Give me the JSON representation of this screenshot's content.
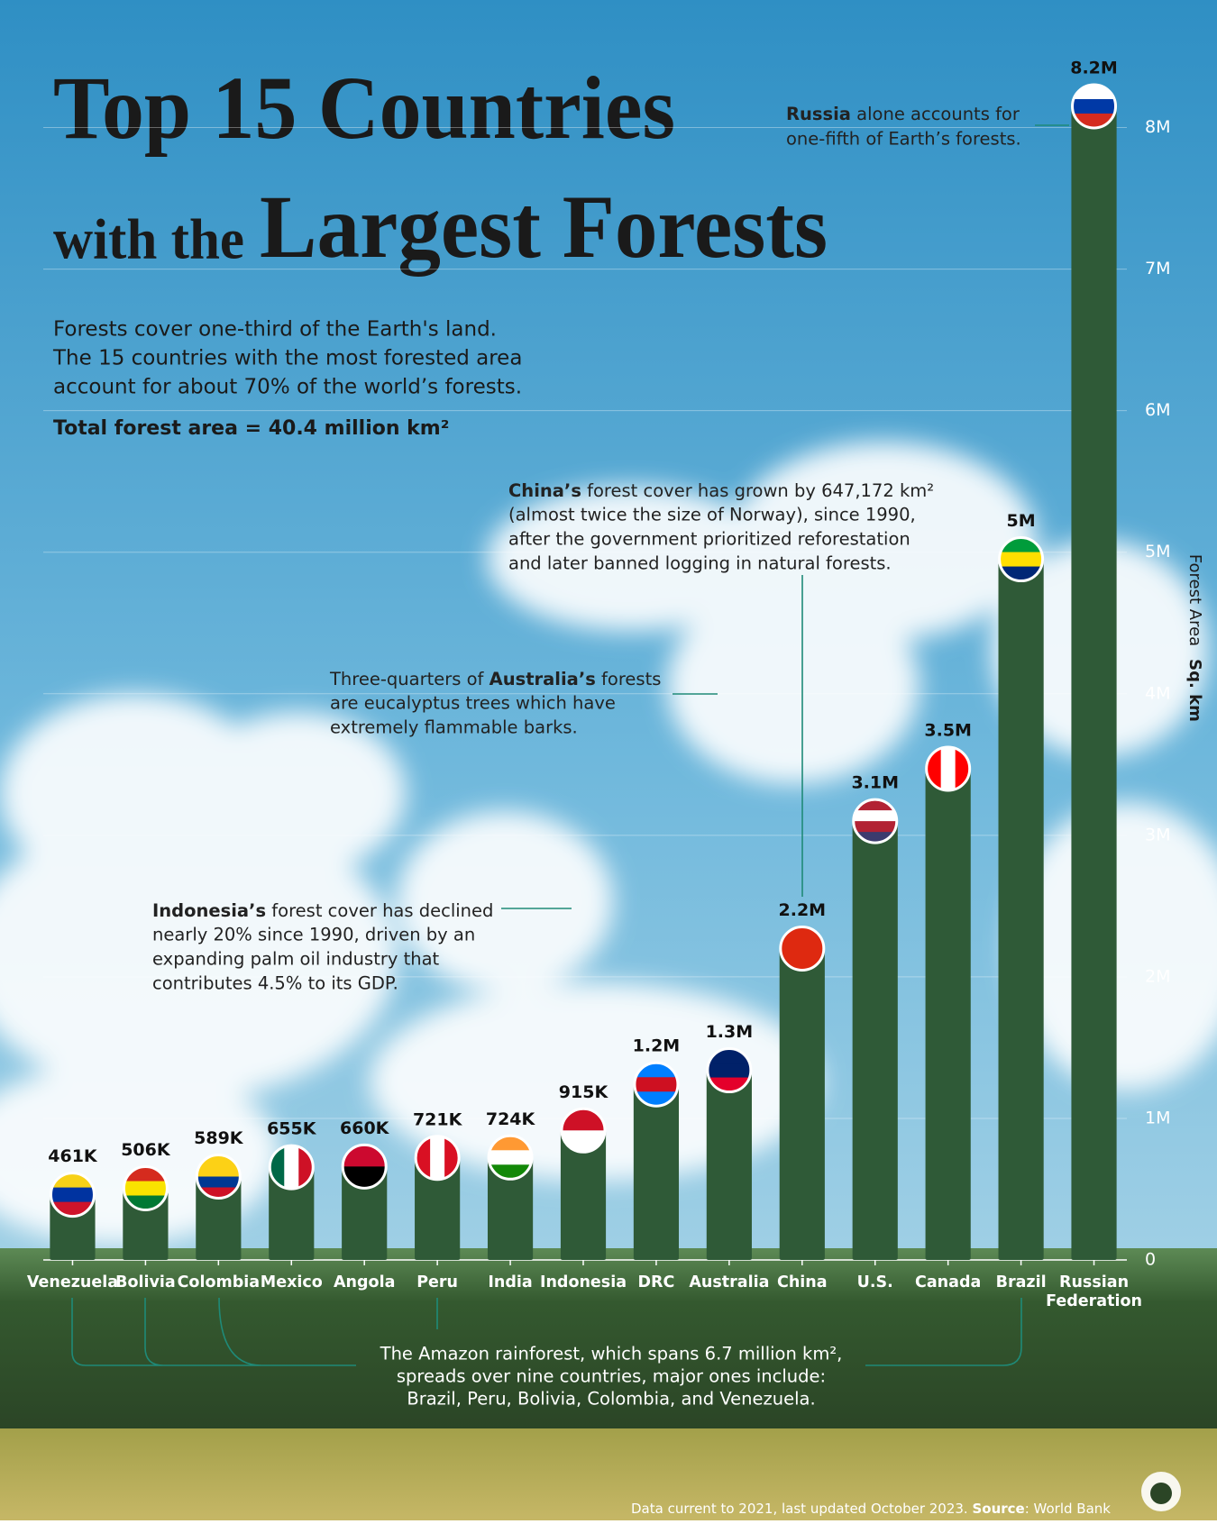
{
  "chart_data": {
    "type": "bar",
    "title": {
      "line1": "Top 15 Countries",
      "line2_small": "with the",
      "line2_large": "Largest Forests"
    },
    "subtitle": [
      "Forests cover one-third of the Earth's land.",
      "The 15 countries with the most forested area",
      "account for about 70% of the world’s forests."
    ],
    "total": "Total forest area = 40.4 million km²",
    "y_label": {
      "text": "Forest Area",
      "bold": "Sq. km"
    },
    "categories": [
      "Venezuela",
      "Bolivia",
      "Colombia",
      "Mexico",
      "Angola",
      "Peru",
      "India",
      "Indonesia",
      "DRC",
      "Australia",
      "China",
      "U.S.",
      "Canada",
      "Brazil",
      "Russian Federation"
    ],
    "values": [
      461000,
      506000,
      589000,
      655000,
      660000,
      721000,
      724000,
      915000,
      1240000,
      1340000,
      2200000,
      3100000,
      3470000,
      4950000,
      8150000
    ],
    "value_labels": [
      "461K",
      "506K",
      "589K",
      "655K",
      "660K",
      "721K",
      "724K",
      "915K",
      "1.2M",
      "1.3M",
      "2.2M",
      "3.1M",
      "3.5M",
      "5M",
      "8.2M"
    ],
    "color": "#2f5a37",
    "ylim": [
      0,
      8500000
    ],
    "yticks": [
      0,
      {
        "value": 1000000,
        "label": "1M"
      },
      {
        "value": 2000000,
        "label": "2M"
      },
      {
        "value": 3000000,
        "label": "3M"
      },
      {
        "value": 4000000,
        "label": "4M"
      },
      {
        "value": 5000000,
        "label": "5M"
      },
      {
        "value": 6000000,
        "label": "6M"
      },
      {
        "value": 7000000,
        "label": "7M"
      },
      {
        "value": 8000000,
        "label": "8M"
      }
    ],
    "grid": true,
    "annotations": [
      {
        "bold": "Russia",
        "lines": [
          " alone accounts for",
          "one-fifth of Earth’s forests."
        ]
      },
      {
        "bold": "China’s",
        "lines": [
          " forest cover has grown by 647,172 km²",
          "(almost twice the size of Norway), since 1990,",
          "after the government prioritized reforestation",
          "and later banned logging in natural forests."
        ]
      },
      {
        "bold": "",
        "lines": [
          "Three-quarters of ",
          "are eucalyptus trees which have",
          "extremely flammable barks."
        ],
        "bold_mid": "Australia’s",
        "after_bold": " forests"
      },
      {
        "bold": "Indonesia’s",
        "lines": [
          " forest cover has declined",
          "nearly 20% since 1990, driven by an",
          "expanding palm oil industry that",
          "contributes 4.5% to its GDP."
        ]
      },
      {
        "bold": "",
        "lines": [
          "The Amazon rainforest, which spans 6.7 million km²,",
          "spreads over nine countries, major ones include:",
          "Brazil, Peru, Bolivia, Colombia, and Venezuela."
        ]
      }
    ],
    "footer": {
      "text": "Data current to 2021, last updated October 2023. ",
      "bold": "Source",
      "source": ": World Bank"
    }
  }
}
